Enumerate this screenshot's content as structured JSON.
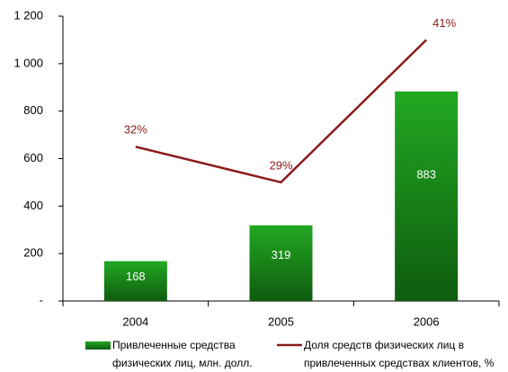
{
  "chart_data": {
    "type": "bar",
    "categories": [
      "2004",
      "2005",
      "2006"
    ],
    "series": [
      {
        "name": "Привлеченные средства физических лиц, млн. долл.",
        "type": "bar",
        "color": "#1f8f1f",
        "values": [
          168,
          319,
          883
        ]
      },
      {
        "name": "Доля средств физических лиц в привлеченных средствах клиентов, %",
        "type": "line",
        "axis": "y2",
        "color": "#8b1a1a",
        "values": [
          32,
          29,
          41
        ],
        "value_labels": [
          "32%",
          "29%",
          "41%"
        ]
      }
    ],
    "ylim": [
      0,
      1200
    ],
    "yticks": [
      {
        "value": 0,
        "label": "-"
      },
      200,
      400,
      600,
      800,
      {
        "value": 1000,
        "label": "1 000"
      },
      {
        "value": 1200,
        "label": "1 200"
      }
    ],
    "y2lim": [
      19,
      43
    ]
  }
}
